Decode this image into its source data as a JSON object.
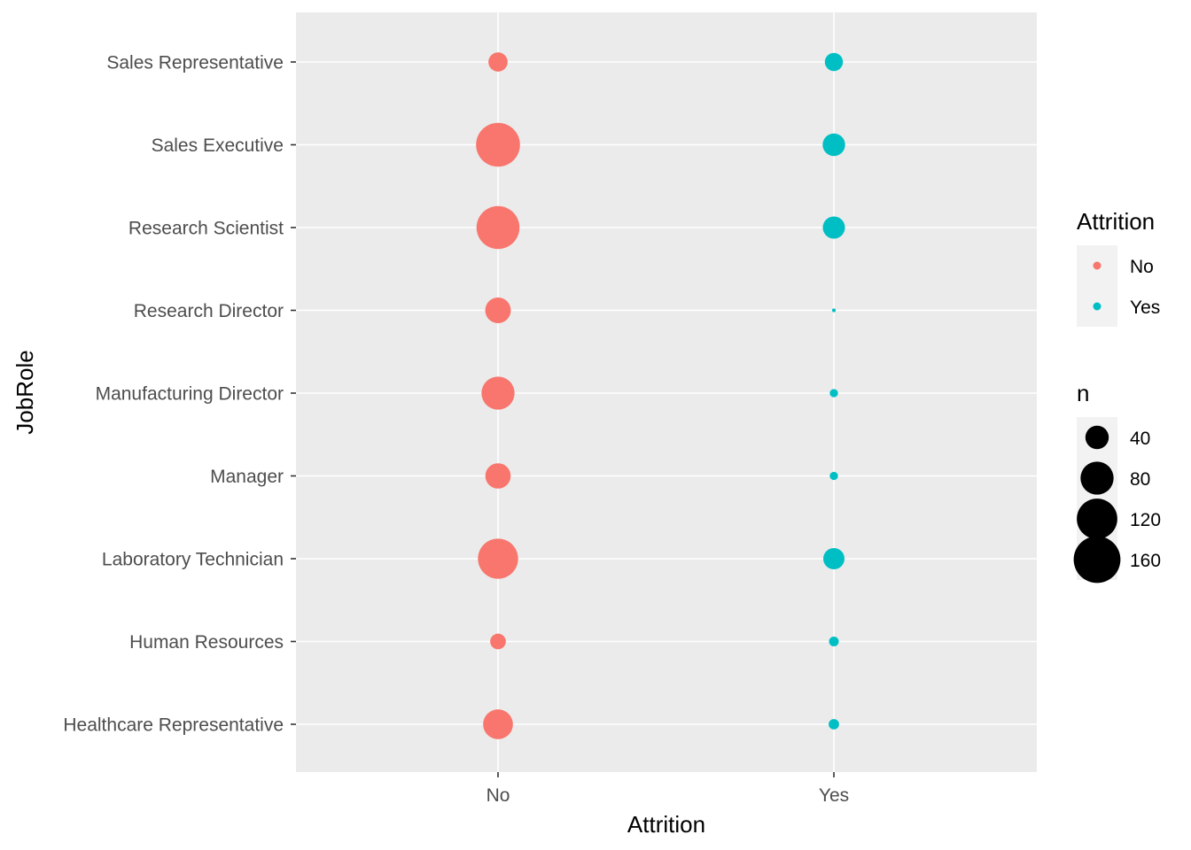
{
  "chart_data": {
    "type": "scatter",
    "xlabel": "Attrition",
    "ylabel": "JobRole",
    "x_categories": [
      "No",
      "Yes"
    ],
    "y_categories": [
      "Healthcare Representative",
      "Human Resources",
      "Laboratory Technician",
      "Manager",
      "Manufacturing Director",
      "Research Director",
      "Research Scientist",
      "Sales Executive",
      "Sales Representative"
    ],
    "series": [
      {
        "name": "No",
        "color": "#F8766D",
        "points": [
          {
            "x": "No",
            "y": "Healthcare Representative",
            "n": 65
          },
          {
            "x": "No",
            "y": "Human Resources",
            "n": 18
          },
          {
            "x": "No",
            "y": "Laboratory Technician",
            "n": 118
          },
          {
            "x": "No",
            "y": "Manager",
            "n": 47
          },
          {
            "x": "No",
            "y": "Manufacturing Director",
            "n": 80
          },
          {
            "x": "No",
            "y": "Research Director",
            "n": 48
          },
          {
            "x": "No",
            "y": "Research Scientist",
            "n": 135
          },
          {
            "x": "No",
            "y": "Sales Executive",
            "n": 141
          },
          {
            "x": "No",
            "y": "Sales Representative",
            "n": 27
          }
        ]
      },
      {
        "name": "Yes",
        "color": "#00BFC4",
        "points": [
          {
            "x": "Yes",
            "y": "Healthcare Representative",
            "n": 8
          },
          {
            "x": "Yes",
            "y": "Human Resources",
            "n": 7
          },
          {
            "x": "Yes",
            "y": "Laboratory Technician",
            "n": 33
          },
          {
            "x": "Yes",
            "y": "Manager",
            "n": 5
          },
          {
            "x": "Yes",
            "y": "Manufacturing Director",
            "n": 5
          },
          {
            "x": "Yes",
            "y": "Research Director",
            "n": 1
          },
          {
            "x": "Yes",
            "y": "Research Scientist",
            "n": 36
          },
          {
            "x": "Yes",
            "y": "Sales Executive",
            "n": 37
          },
          {
            "x": "Yes",
            "y": "Sales Representative",
            "n": 24
          }
        ]
      }
    ],
    "legend": {
      "color_title": "Attrition",
      "color_entries": [
        {
          "label": "No",
          "color": "#F8766D"
        },
        {
          "label": "Yes",
          "color": "#00BFC4"
        }
      ],
      "size_title": "n",
      "size_entries": [
        {
          "label": "40",
          "value": 40
        },
        {
          "label": "80",
          "value": 80
        },
        {
          "label": "120",
          "value": 120
        },
        {
          "label": "160",
          "value": 160
        }
      ],
      "placement": "right"
    },
    "panel_background": "#EBEBEB",
    "grid": true
  }
}
